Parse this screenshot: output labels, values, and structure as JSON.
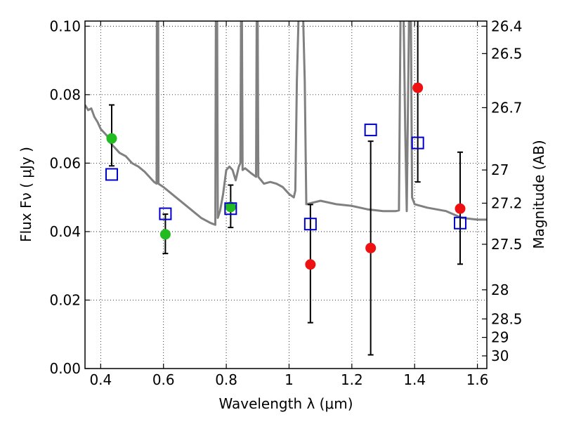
{
  "chart_data": {
    "type": "scatter",
    "xlabel": "Wavelength  λ (μm)",
    "ylabel": "Flux  Fν  ( μJy )",
    "ylabel_right": "Magnitude (AB)",
    "xlim": [
      0.35,
      1.63
    ],
    "ylim": [
      0.0,
      0.1015
    ],
    "grid": true,
    "x_ticks": [
      0.4,
      0.6,
      0.8,
      1.0,
      1.2,
      1.4,
      1.6
    ],
    "x_tick_labels": [
      "0.4",
      "0.6",
      "0.8",
      "1",
      "1.2",
      "1.4",
      "1.6"
    ],
    "y_ticks": [
      0.0,
      0.02,
      0.04,
      0.06,
      0.08,
      0.1
    ],
    "y_tick_labels": [
      "0.00",
      "0.02",
      "0.04",
      "0.06",
      "0.08",
      "0.10"
    ],
    "right_ticks": [
      {
        "label": "26.4",
        "flux": 0.1
      },
      {
        "label": "26.5",
        "flux": 0.092
      },
      {
        "label": "26.7",
        "flux": 0.0762
      },
      {
        "label": "27",
        "flux": 0.058
      },
      {
        "label": "27.2",
        "flux": 0.0483
      },
      {
        "label": "27.5",
        "flux": 0.0363
      },
      {
        "label": "28",
        "flux": 0.023
      },
      {
        "label": "28.5",
        "flux": 0.0145
      },
      {
        "label": "29",
        "flux": 0.0091
      },
      {
        "label": "30",
        "flux": 0.0037
      }
    ],
    "series": [
      {
        "role": "model_spectrum",
        "kind": "line",
        "color": "#808080",
        "points": [
          [
            0.35,
            0.077
          ],
          [
            0.36,
            0.0755
          ],
          [
            0.37,
            0.076
          ],
          [
            0.38,
            0.0735
          ],
          [
            0.39,
            0.072
          ],
          [
            0.4,
            0.07
          ],
          [
            0.41,
            0.069
          ],
          [
            0.42,
            0.068
          ],
          [
            0.43,
            0.066
          ],
          [
            0.44,
            0.065
          ],
          [
            0.45,
            0.064
          ],
          [
            0.46,
            0.063
          ],
          [
            0.48,
            0.062
          ],
          [
            0.5,
            0.06
          ],
          [
            0.52,
            0.059
          ],
          [
            0.54,
            0.0575
          ],
          [
            0.56,
            0.0555
          ],
          [
            0.57,
            0.0545
          ],
          [
            0.578,
            0.054
          ],
          [
            0.579,
            0.102
          ],
          [
            0.583,
            0.102
          ],
          [
            0.584,
            0.054
          ],
          [
            0.6,
            0.053
          ],
          [
            0.64,
            0.05
          ],
          [
            0.68,
            0.047
          ],
          [
            0.72,
            0.044
          ],
          [
            0.75,
            0.0425
          ],
          [
            0.765,
            0.042
          ],
          [
            0.767,
            0.102
          ],
          [
            0.771,
            0.102
          ],
          [
            0.773,
            0.044
          ],
          [
            0.78,
            0.046
          ],
          [
            0.79,
            0.051
          ],
          [
            0.8,
            0.058
          ],
          [
            0.81,
            0.059
          ],
          [
            0.82,
            0.058
          ],
          [
            0.83,
            0.055
          ],
          [
            0.84,
            0.059
          ],
          [
            0.845,
            0.06
          ],
          [
            0.847,
            0.102
          ],
          [
            0.85,
            0.102
          ],
          [
            0.852,
            0.058
          ],
          [
            0.86,
            0.0585
          ],
          [
            0.88,
            0.057
          ],
          [
            0.895,
            0.056
          ],
          [
            0.897,
            0.102
          ],
          [
            0.9,
            0.102
          ],
          [
            0.902,
            0.056
          ],
          [
            0.92,
            0.054
          ],
          [
            0.94,
            0.0545
          ],
          [
            0.96,
            0.054
          ],
          [
            0.98,
            0.053
          ],
          [
            1.0,
            0.051
          ],
          [
            1.015,
            0.05
          ],
          [
            1.02,
            0.052
          ],
          [
            1.025,
            0.084
          ],
          [
            1.03,
            0.102
          ],
          [
            1.045,
            0.102
          ],
          [
            1.05,
            0.084
          ],
          [
            1.055,
            0.048
          ],
          [
            1.1,
            0.049
          ],
          [
            1.15,
            0.048
          ],
          [
            1.2,
            0.0475
          ],
          [
            1.25,
            0.0465
          ],
          [
            1.3,
            0.046
          ],
          [
            1.34,
            0.046
          ],
          [
            1.35,
            0.0462
          ],
          [
            1.355,
            0.102
          ],
          [
            1.365,
            0.102
          ],
          [
            1.37,
            0.07
          ],
          [
            1.375,
            0.046
          ],
          [
            1.382,
            0.102
          ],
          [
            1.388,
            0.102
          ],
          [
            1.392,
            0.05
          ],
          [
            1.4,
            0.048
          ],
          [
            1.44,
            0.047
          ],
          [
            1.5,
            0.046
          ],
          [
            1.55,
            0.044
          ],
          [
            1.6,
            0.0435
          ],
          [
            1.63,
            0.0435
          ]
        ]
      },
      {
        "role": "observed_optical",
        "kind": "point",
        "color": "#22bb22",
        "points": [
          {
            "x": 0.435,
            "y": 0.0672,
            "ylo": 0.0592,
            "yhi": 0.077
          },
          {
            "x": 0.606,
            "y": 0.0392,
            "ylo": 0.0336,
            "yhi": 0.0451
          },
          {
            "x": 0.814,
            "y": 0.0472,
            "ylo": 0.0412,
            "yhi": 0.0536
          }
        ]
      },
      {
        "role": "observed_nir",
        "kind": "point",
        "color": "#ee1111",
        "points": [
          {
            "x": 1.068,
            "y": 0.0304,
            "ylo": 0.0134,
            "yhi": 0.0479
          },
          {
            "x": 1.26,
            "y": 0.0352,
            "ylo": 0.004,
            "yhi": 0.0664
          },
          {
            "x": 1.41,
            "y": 0.082,
            "ylo": 0.0545,
            "yhi": 0.102
          },
          {
            "x": 1.545,
            "y": 0.0467,
            "ylo": 0.0305,
            "yhi": 0.0632
          }
        ]
      },
      {
        "role": "model_photometry",
        "kind": "open_square",
        "color": "#0000cc",
        "points": [
          {
            "x": 0.435,
            "y": 0.0567
          },
          {
            "x": 0.606,
            "y": 0.0452
          },
          {
            "x": 0.814,
            "y": 0.0467
          },
          {
            "x": 1.068,
            "y": 0.0422
          },
          {
            "x": 1.26,
            "y": 0.0697
          },
          {
            "x": 1.41,
            "y": 0.0659
          },
          {
            "x": 1.545,
            "y": 0.0425
          }
        ]
      }
    ]
  }
}
